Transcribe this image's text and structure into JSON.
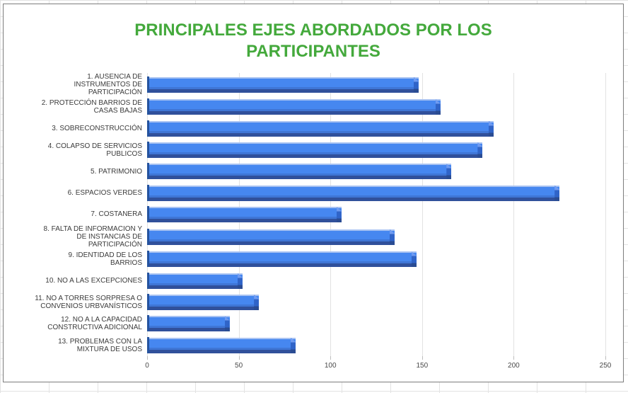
{
  "sheet": {
    "grid_line_color": "#e3e3e3"
  },
  "chart_frame": {
    "border_color": "#7d7d7d",
    "background_color": "#ffffff"
  },
  "chart_data": {
    "type": "bar",
    "orientation": "horizontal",
    "title": "PRINCIPALES EJES ABORDADOS POR LOS PARTICIPANTES",
    "title_color": "#44a93c",
    "categories": [
      "1. AUSENCIA DE INSTRUMENTOS DE PARTICIPACIÓN",
      "2. PROTECCIÓN BARRIOS DE CASAS BAJAS",
      "3. SOBRECONSTRUCCIÓN",
      "4. COLAPSO DE SERVICIOS PUBLICOS",
      "5. PATRIMONIO",
      "6. ESPACIOS VERDES",
      "7. COSTANERA",
      "8. FALTA DE INFORMACION Y DE INSTANCIAS DE PARTICIPACIÓN",
      "9. IDENTIDAD DE LOS BARRIOS",
      "10. NO A LAS EXCEPCIONES",
      "11. NO A TORRES SORPRESA O CONVENIOS URBVANÍSTICOS",
      "12. NO A LA CAPACIDAD CONSTRUCTIVA ADICIONAL",
      "13. PROBLEMAS CON LA MIXTURA DE USOS"
    ],
    "values": [
      148,
      160,
      189,
      183,
      166,
      225,
      106,
      135,
      147,
      52,
      61,
      45,
      81
    ],
    "xlabel": "",
    "ylabel": "",
    "xlim": [
      0,
      250
    ],
    "x_ticks": [
      0,
      50,
      100,
      150,
      200,
      250
    ],
    "grid": true,
    "legend": "none",
    "bar_color": "#4687f0",
    "bar_shadow_color": "#30509b",
    "bar_highlight_color": "#a9c3f2",
    "gridline_color": "#e2e2e2",
    "axis_label_color": "#4a4a4a",
    "category_label_color": "#3b3b3b"
  }
}
